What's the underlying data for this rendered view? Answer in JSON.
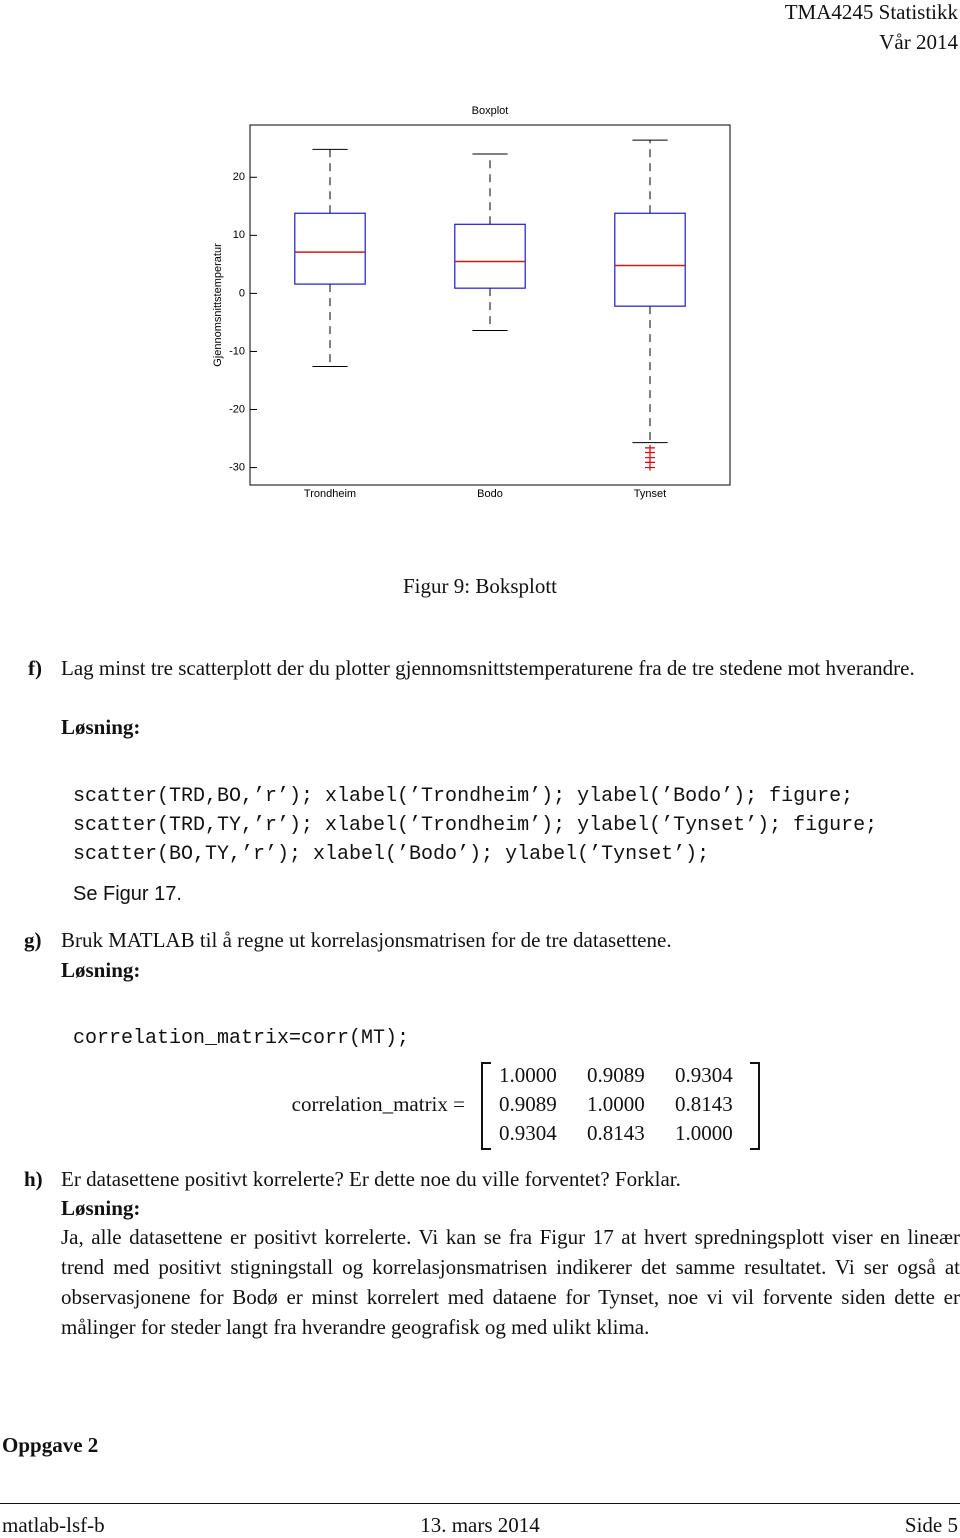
{
  "header": {
    "course": "TMA4245 Statistikk",
    "term": "Vår 2014"
  },
  "chart_data": {
    "type": "box",
    "title": "Boxplot",
    "y_label": "Gjennomsnittstemperatur",
    "categories": [
      "Trondheim",
      "Bodo",
      "Tynset"
    ],
    "whisker_high": [
      24.8,
      24.0,
      26.4
    ],
    "q3": [
      13.8,
      11.9,
      13.8
    ],
    "median": [
      7.1,
      5.5,
      4.8
    ],
    "q1": [
      1.6,
      0.9,
      -2.2
    ],
    "whisker_low": [
      -12.6,
      -6.4,
      -25.7
    ],
    "outliers": [
      [],
      [],
      [
        -26.6,
        -27.4,
        -28.3,
        -29.1,
        -30.0
      ]
    ],
    "ylim": [
      -33,
      29
    ],
    "yticks": [
      -30,
      -20,
      -10,
      0,
      10,
      20
    ],
    "box_color": "#1a1acc",
    "median_color": "#cc1a1a",
    "whisker_color": "#000000",
    "outlier_color": "#dd0000"
  },
  "caption": "Figur 9: Boksplott",
  "items": [
    {
      "label": "f)",
      "question": "Lag minst tre scatterplott der du plotter gjennomsnittstemperaturene fra de tre stedene mot hverandre.",
      "solution_label": "Løsning:",
      "code": [
        "scatter(TRD,BO,’r’); xlabel(’Trondheim’); ylabel(’Bodo’); figure;",
        "scatter(TRD,TY,’r’); xlabel(’Trondheim’); ylabel(’Tynset’); figure;",
        "scatter(BO,TY,’r’); xlabel(’Bodo’); ylabel(’Tynset’);"
      ],
      "note": "Se Figur 17."
    },
    {
      "label": "g)",
      "question": "Bruk MATLAB til å regne ut korrelasjonsmatrisen for de tre datasettene.",
      "solution_label": "Løsning:",
      "code": [
        "correlation_matrix=corr(MT);"
      ],
      "matrix": {
        "label": "correlation_matrix =",
        "rows": [
          [
            "1.0000",
            "0.9089",
            "0.9304"
          ],
          [
            "0.9089",
            "1.0000",
            "0.8143"
          ],
          [
            "0.9304",
            "0.8143",
            "1.0000"
          ]
        ]
      }
    },
    {
      "label": "h)",
      "question": "Er datasettene positivt korrelerte? Er dette noe du ville forventet? Forklar.",
      "solution_label": "Løsning:",
      "answer": "Ja, alle datasettene er positivt korrelerte. Vi kan se fra Figur 17 at hvert spredningsplott viser en lineær trend med positivt stigningstall og korrelasjonsmatrisen indikerer det samme resultatet. Vi ser også at observasjonene for Bodø er minst korrelert med dataene for Tynset, noe vi vil forvente siden dette er målinger for steder langt fra hverandre geografisk og med ulikt klima."
    }
  ],
  "section": "Oppgave 2",
  "footer": {
    "left": "matlab-lsf-b",
    "center": "13. mars 2014",
    "right": "Side 5"
  }
}
